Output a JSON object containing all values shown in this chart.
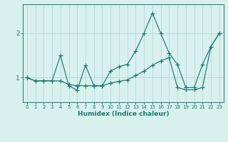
{
  "x": [
    0,
    1,
    2,
    3,
    4,
    5,
    6,
    7,
    8,
    9,
    10,
    11,
    12,
    13,
    14,
    15,
    16,
    17,
    18,
    19,
    20,
    21,
    22,
    23
  ],
  "line1_zigzag": [
    1.0,
    0.93,
    0.93,
    0.93,
    1.5,
    0.82,
    0.72,
    1.28,
    0.82,
    0.82,
    1.15,
    1.25,
    1.3,
    1.6,
    2.0,
    2.45,
    2.0,
    1.55,
    1.3,
    0.78,
    0.78,
    1.3,
    1.7,
    2.0
  ],
  "line2_trend": [
    1.0,
    0.93,
    0.93,
    0.93,
    0.93,
    0.85,
    0.82,
    0.82,
    0.82,
    0.82,
    0.88,
    0.92,
    0.95,
    1.05,
    1.15,
    1.28,
    1.38,
    1.45,
    0.78,
    0.73,
    0.73,
    0.78,
    1.7,
    2.0
  ],
  "color": "#1a7a6e",
  "bg_color": "#d8f0ee",
  "grid_color": "#b8d8d5",
  "xlabel": "Humidex (Indice chaleur)",
  "yticks": [
    1,
    2
  ],
  "xlim": [
    -0.5,
    23.5
  ],
  "ylim": [
    0.45,
    2.65
  ],
  "xtick_fontsize": 5.0,
  "ytick_fontsize": 6.5,
  "xlabel_fontsize": 6.5
}
